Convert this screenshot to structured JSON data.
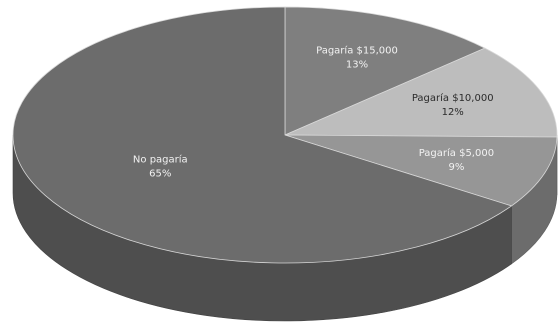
{
  "chart_data": {
    "type": "pie",
    "style": "3d",
    "title": "",
    "colors": [
      "#7f7f7f",
      "#bdbdbd",
      "#969696",
      "#6c6c6c"
    ],
    "slices": [
      {
        "label": "Pagaría $15,000",
        "value": 13,
        "value_label": "13%"
      },
      {
        "label": "Pagaría $10,000",
        "value": 12,
        "value_label": "12%"
      },
      {
        "label": "Pagaría $5,000",
        "value": 9,
        "value_label": "9%"
      },
      {
        "label": "No pagaría",
        "value": 65,
        "value_label": "65%"
      }
    ]
  }
}
